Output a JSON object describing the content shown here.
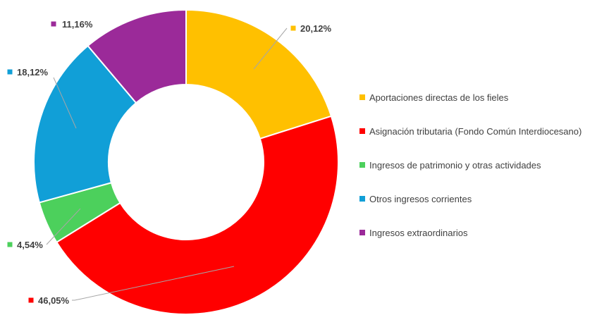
{
  "chart_data": {
    "type": "pie",
    "donut": true,
    "legend_position": "right",
    "series": [
      {
        "name": "Aportaciones directas de los fieles",
        "value": 20.12,
        "label": "20,12%",
        "color": "#FFC000"
      },
      {
        "name": "Asignación tributaria (Fondo Común Interdiocesano)",
        "value": 46.05,
        "label": "46,05%",
        "color": "#FF0000"
      },
      {
        "name": "Ingresos de patrimonio y otras actividades",
        "value": 4.54,
        "label": "4,54%",
        "color": "#4CD05C"
      },
      {
        "name": "Otros ingresos corrientes",
        "value": 18.12,
        "label": "18,12%",
        "color": "#119FD7"
      },
      {
        "name": "Ingresos extraordinarios",
        "value": 11.16,
        "label": "11,16%",
        "color": "#9B2A99"
      }
    ]
  }
}
